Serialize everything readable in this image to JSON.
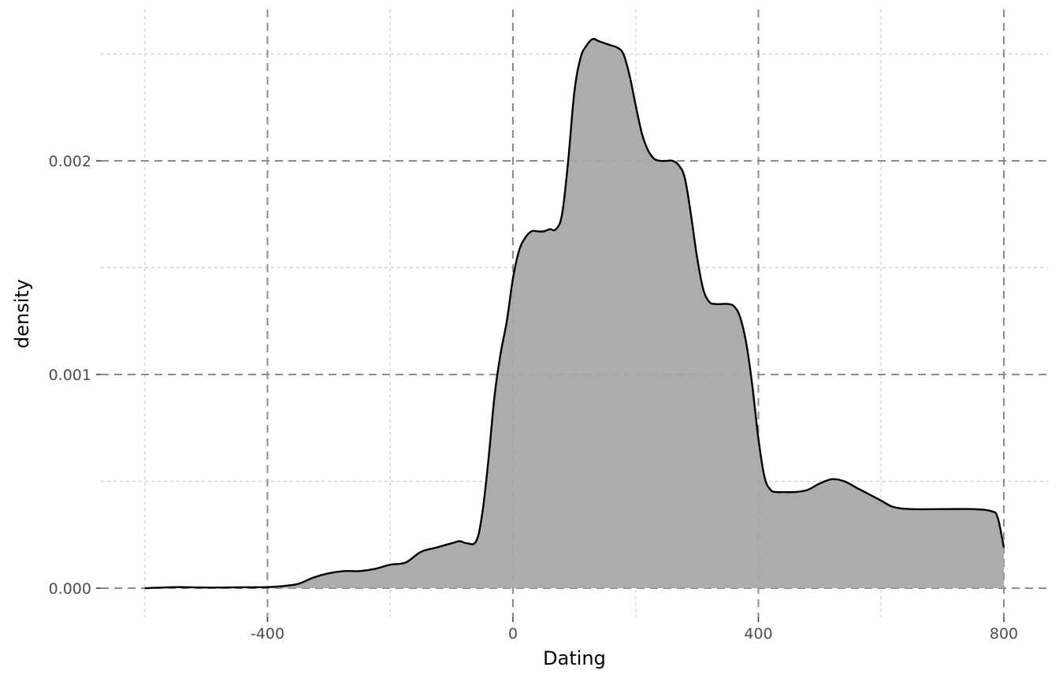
{
  "chart_data": {
    "type": "area",
    "title": "",
    "xlabel": "Dating",
    "ylabel": "density",
    "xlim": [
      -600,
      800
    ],
    "ylim": [
      0,
      0.00257
    ],
    "x_ticks": [
      -400,
      0,
      400,
      800
    ],
    "x_tick_labels": [
      "-400",
      "0",
      "400",
      "800"
    ],
    "x_minor_ticks": [
      -600,
      -200,
      200,
      600
    ],
    "y_ticks": [
      0,
      0.001,
      0.002
    ],
    "y_tick_labels": [
      "0.000",
      "0.001",
      "0.002"
    ],
    "y_minor_ticks": [
      0.0005,
      0.0015,
      0.0025
    ],
    "grid": true,
    "legend": "none",
    "fill_color": "#a6a6a6",
    "line_color": "#000000",
    "series": [
      {
        "x": [
          -600,
          -550,
          -500,
          -450,
          -400,
          -375,
          -350,
          -325,
          -300,
          -275,
          -250,
          -225,
          -200,
          -175,
          -150,
          -125,
          -100,
          -87,
          -75,
          -60,
          -50,
          -40,
          -30,
          -20,
          -10,
          0,
          10,
          20,
          30,
          40,
          50,
          60,
          70,
          80,
          90,
          100,
          110,
          120,
          130,
          140,
          150,
          160,
          170,
          180,
          190,
          200,
          210,
          220,
          230,
          240,
          250,
          260,
          270,
          280,
          290,
          300,
          310,
          320,
          330,
          340,
          350,
          360,
          370,
          380,
          390,
          400,
          410,
          420,
          430,
          440,
          460,
          480,
          500,
          520,
          540,
          560,
          580,
          600,
          620,
          650,
          700,
          750,
          780,
          790,
          800
        ],
        "y": [
          0,
          5e-06,
          3e-06,
          4e-06,
          5e-06,
          1e-05,
          2e-05,
          5e-05,
          7e-05,
          8e-05,
          8e-05,
          9e-05,
          0.00011,
          0.00012,
          0.00017,
          0.00019,
          0.00021,
          0.00022,
          0.00021,
          0.00022,
          0.00035,
          0.0006,
          0.0009,
          0.0011,
          0.00125,
          0.00145,
          0.00158,
          0.00164,
          0.00167,
          0.00167,
          0.00167,
          0.00168,
          0.00168,
          0.00175,
          0.002,
          0.00232,
          0.00248,
          0.00254,
          0.00257,
          0.00256,
          0.00255,
          0.00254,
          0.00253,
          0.0025,
          0.0024,
          0.00226,
          0.00213,
          0.00205,
          0.00201,
          0.002,
          0.002,
          0.002,
          0.00198,
          0.00192,
          0.00175,
          0.00155,
          0.0014,
          0.00134,
          0.00133,
          0.00133,
          0.00133,
          0.00132,
          0.00127,
          0.00115,
          0.00095,
          0.0007,
          0.00052,
          0.00046,
          0.00045,
          0.00045,
          0.00045,
          0.00046,
          0.00049,
          0.00051,
          0.0005,
          0.00047,
          0.00044,
          0.00041,
          0.00038,
          0.00037,
          0.00037,
          0.00037,
          0.00036,
          0.00033,
          0.00019
        ]
      }
    ]
  }
}
